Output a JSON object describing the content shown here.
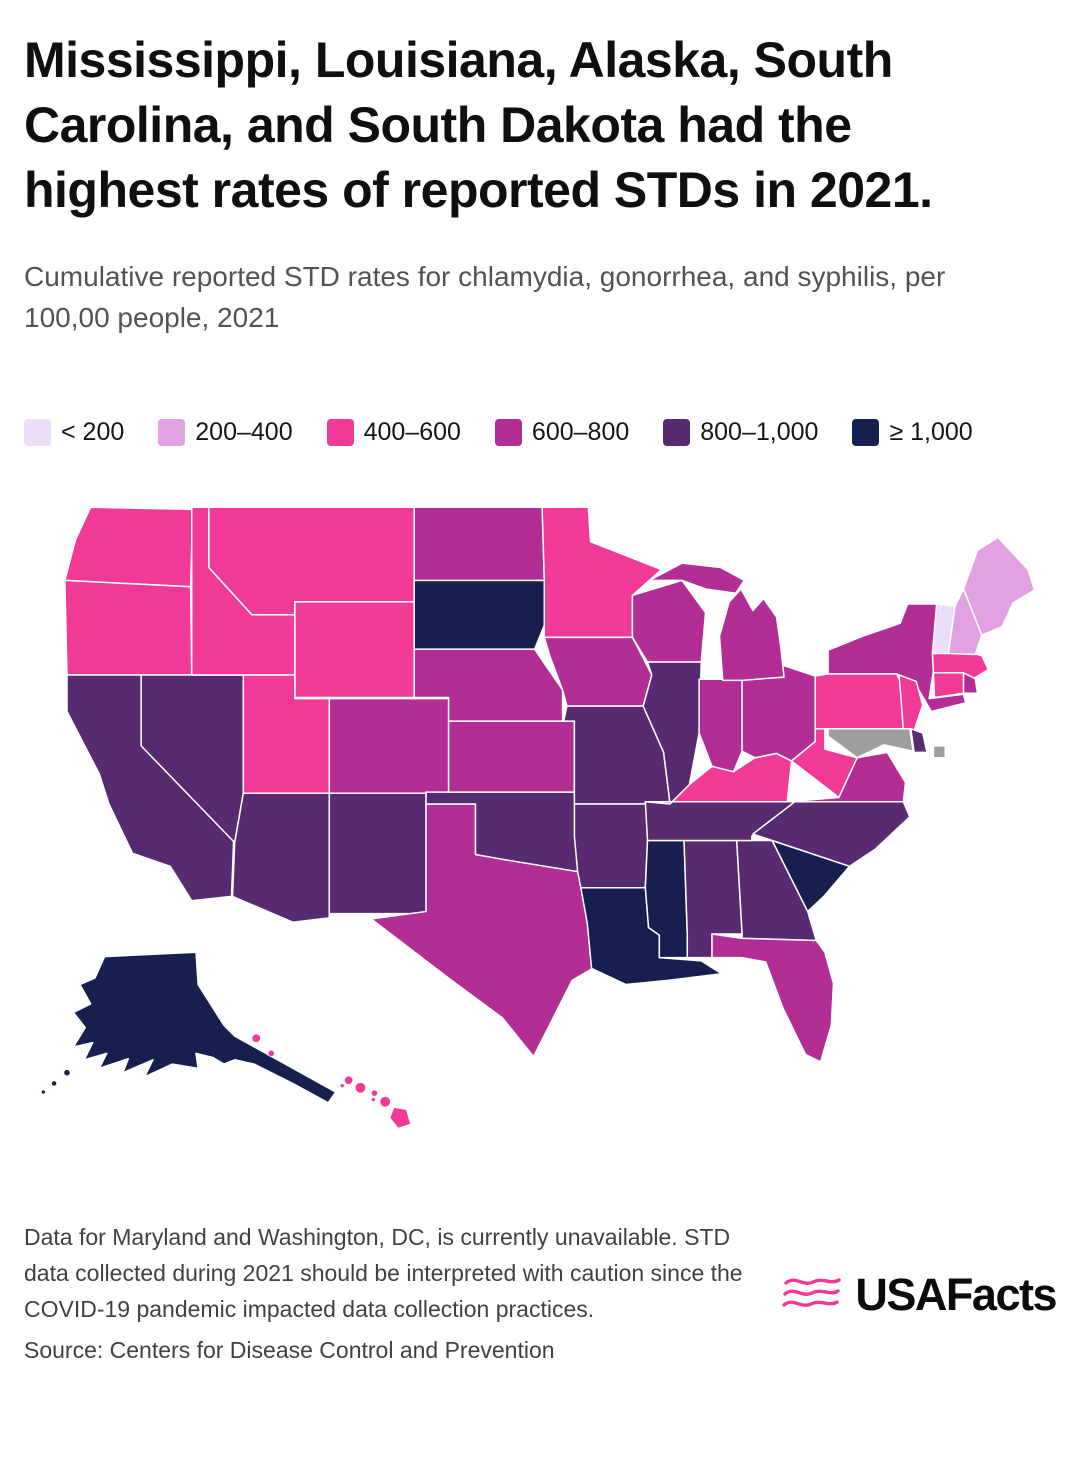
{
  "header": {
    "title": "Mississippi, Louisiana, Alaska, South Carolina, and South Dakota had the highest rates of reported STDs in 2021.",
    "subtitle": "Cumulative reported STD rates for chlamydia, gonorrhea, and syphilis, per 100,00 people, 2021"
  },
  "chart_data": {
    "type": "choropleth",
    "title": "Mississippi, Louisiana, Alaska, South Carolina, and South Dakota had the highest rates of reported STDs in 2021.",
    "subtitle": "Cumulative reported STD rates for chlamydia, gonorrhea, and syphilis, per 100,00 people, 2021",
    "region": "United States, by state",
    "legend_position": "top",
    "legend": [
      {
        "label": "< 200",
        "color": "#ecdef8"
      },
      {
        "label": "200–400",
        "color": "#e2a1e1"
      },
      {
        "label": "400–600",
        "color": "#f13a96"
      },
      {
        "label": "600–800",
        "color": "#b32e94"
      },
      {
        "label": "800–1,000",
        "color": "#582b70"
      },
      {
        "label": "≥ 1,000",
        "color": "#161f4e"
      }
    ],
    "unavailable_color": "#9e9e9e",
    "states": [
      {
        "name": "Washington",
        "abbr": "WA",
        "category": "400–600"
      },
      {
        "name": "Oregon",
        "abbr": "OR",
        "category": "400–600"
      },
      {
        "name": "California",
        "abbr": "CA",
        "category": "800–1,000"
      },
      {
        "name": "Nevada",
        "abbr": "NV",
        "category": "800–1,000"
      },
      {
        "name": "Idaho",
        "abbr": "ID",
        "category": "400–600"
      },
      {
        "name": "Montana",
        "abbr": "MT",
        "category": "400–600"
      },
      {
        "name": "Wyoming",
        "abbr": "WY",
        "category": "400–600"
      },
      {
        "name": "Utah",
        "abbr": "UT",
        "category": "400–600"
      },
      {
        "name": "Colorado",
        "abbr": "CO",
        "category": "600–800"
      },
      {
        "name": "Arizona",
        "abbr": "AZ",
        "category": "800–1,000"
      },
      {
        "name": "New Mexico",
        "abbr": "NM",
        "category": "800–1,000"
      },
      {
        "name": "Texas",
        "abbr": "TX",
        "category": "600–800"
      },
      {
        "name": "Oklahoma",
        "abbr": "OK",
        "category": "800–1,000"
      },
      {
        "name": "Kansas",
        "abbr": "KS",
        "category": "600–800"
      },
      {
        "name": "Nebraska",
        "abbr": "NE",
        "category": "600–800"
      },
      {
        "name": "South Dakota",
        "abbr": "SD",
        "category": "≥ 1,000"
      },
      {
        "name": "North Dakota",
        "abbr": "ND",
        "category": "600–800"
      },
      {
        "name": "Minnesota",
        "abbr": "MN",
        "category": "400–600"
      },
      {
        "name": "Iowa",
        "abbr": "IA",
        "category": "600–800"
      },
      {
        "name": "Missouri",
        "abbr": "MO",
        "category": "800–1,000"
      },
      {
        "name": "Arkansas",
        "abbr": "AR",
        "category": "800–1,000"
      },
      {
        "name": "Louisiana",
        "abbr": "LA",
        "category": "≥ 1,000"
      },
      {
        "name": "Wisconsin",
        "abbr": "WI",
        "category": "600–800"
      },
      {
        "name": "Illinois",
        "abbr": "IL",
        "category": "800–1,000"
      },
      {
        "name": "Mississippi",
        "abbr": "MS",
        "category": "≥ 1,000"
      },
      {
        "name": "Alabama",
        "abbr": "AL",
        "category": "800–1,000"
      },
      {
        "name": "Georgia",
        "abbr": "GA",
        "category": "800–1,000"
      },
      {
        "name": "Florida",
        "abbr": "FL",
        "category": "600–800"
      },
      {
        "name": "Tennessee",
        "abbr": "TN",
        "category": "800–1,000"
      },
      {
        "name": "Kentucky",
        "abbr": "KY",
        "category": "400–600"
      },
      {
        "name": "Indiana",
        "abbr": "IN",
        "category": "600–800"
      },
      {
        "name": "Ohio",
        "abbr": "OH",
        "category": "600–800"
      },
      {
        "name": "Michigan",
        "abbr": "MI",
        "category": "600–800"
      },
      {
        "name": "South Carolina",
        "abbr": "SC",
        "category": "≥ 1,000"
      },
      {
        "name": "North Carolina",
        "abbr": "NC",
        "category": "800–1,000"
      },
      {
        "name": "Virginia",
        "abbr": "VA",
        "category": "600–800"
      },
      {
        "name": "West Virginia",
        "abbr": "WV",
        "category": "400–600"
      },
      {
        "name": "Pennsylvania",
        "abbr": "PA",
        "category": "400–600"
      },
      {
        "name": "New York",
        "abbr": "NY",
        "category": "600–800"
      },
      {
        "name": "New Jersey",
        "abbr": "NJ",
        "category": "400–600"
      },
      {
        "name": "Maryland",
        "abbr": "MD",
        "category": "unavailable"
      },
      {
        "name": "Delaware",
        "abbr": "DE",
        "category": "800–1,000"
      },
      {
        "name": "District of Columbia",
        "abbr": "DC",
        "category": "unavailable"
      },
      {
        "name": "Connecticut",
        "abbr": "CT",
        "category": "400–600"
      },
      {
        "name": "Rhode Island",
        "abbr": "RI",
        "category": "600–800"
      },
      {
        "name": "Massachusetts",
        "abbr": "MA",
        "category": "400–600"
      },
      {
        "name": "Vermont",
        "abbr": "VT",
        "category": "< 200"
      },
      {
        "name": "New Hampshire",
        "abbr": "NH",
        "category": "200–400"
      },
      {
        "name": "Maine",
        "abbr": "ME",
        "category": "200–400"
      },
      {
        "name": "Alaska",
        "abbr": "AK",
        "category": "≥ 1,000"
      },
      {
        "name": "Hawaii",
        "abbr": "HI",
        "category": "400–600"
      }
    ]
  },
  "footer": {
    "note": "Data for Maryland and Washington, DC, is currently unavailable. STD data collected during 2021 should be interpreted with caution since the COVID-19 pandemic impacted data collection practices.",
    "source": "Source: Centers for Disease Control and Prevention",
    "logo_text": "USAFacts",
    "brand_color": "#f13a96"
  }
}
